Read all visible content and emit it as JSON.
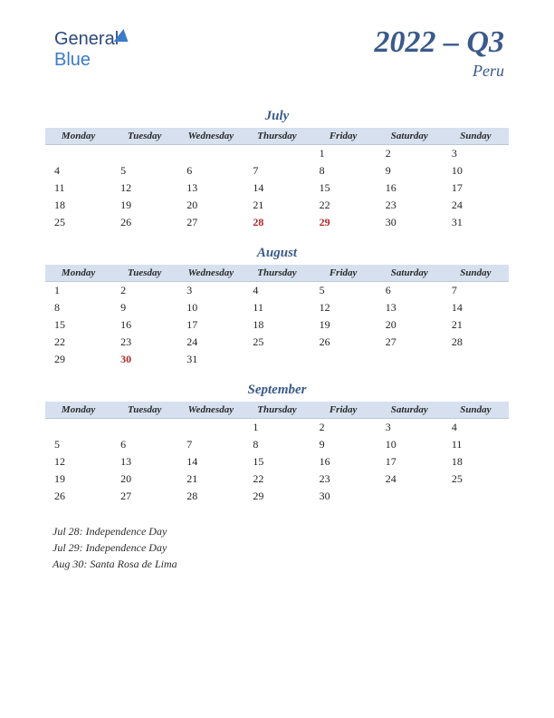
{
  "logo": {
    "text1": "General",
    "text2": "Blue"
  },
  "title": "2022 – Q3",
  "subtitle": "Peru",
  "weekdays": [
    "Monday",
    "Tuesday",
    "Wednesday",
    "Thursday",
    "Friday",
    "Saturday",
    "Sunday"
  ],
  "colors": {
    "header_bg": "#d6e0ef",
    "accent": "#3a5a8a",
    "holiday": "#b02828",
    "text": "#222222",
    "background": "#ffffff"
  },
  "months": [
    {
      "name": "July",
      "weeks": [
        [
          "",
          "",
          "",
          "",
          "1",
          "2",
          "3"
        ],
        [
          "4",
          "5",
          "6",
          "7",
          "8",
          "9",
          "10"
        ],
        [
          "11",
          "12",
          "13",
          "14",
          "15",
          "16",
          "17"
        ],
        [
          "18",
          "19",
          "20",
          "21",
          "22",
          "23",
          "24"
        ],
        [
          "25",
          "26",
          "27",
          "28",
          "29",
          "30",
          "31"
        ]
      ],
      "holiday_cells": [
        [
          4,
          3
        ],
        [
          4,
          4
        ]
      ]
    },
    {
      "name": "August",
      "weeks": [
        [
          "1",
          "2",
          "3",
          "4",
          "5",
          "6",
          "7"
        ],
        [
          "8",
          "9",
          "10",
          "11",
          "12",
          "13",
          "14"
        ],
        [
          "15",
          "16",
          "17",
          "18",
          "19",
          "20",
          "21"
        ],
        [
          "22",
          "23",
          "24",
          "25",
          "26",
          "27",
          "28"
        ],
        [
          "29",
          "30",
          "31",
          "",
          "",
          "",
          ""
        ]
      ],
      "holiday_cells": [
        [
          4,
          1
        ]
      ]
    },
    {
      "name": "September",
      "weeks": [
        [
          "",
          "",
          "",
          "1",
          "2",
          "3",
          "4"
        ],
        [
          "5",
          "6",
          "7",
          "8",
          "9",
          "10",
          "11"
        ],
        [
          "12",
          "13",
          "14",
          "15",
          "16",
          "17",
          "18"
        ],
        [
          "19",
          "20",
          "21",
          "22",
          "23",
          "24",
          "25"
        ],
        [
          "26",
          "27",
          "28",
          "29",
          "30",
          "",
          ""
        ]
      ],
      "holiday_cells": []
    }
  ],
  "holidays": [
    "Jul 28: Independence Day",
    "Jul 29: Independence Day",
    "Aug 30: Santa Rosa de Lima"
  ]
}
